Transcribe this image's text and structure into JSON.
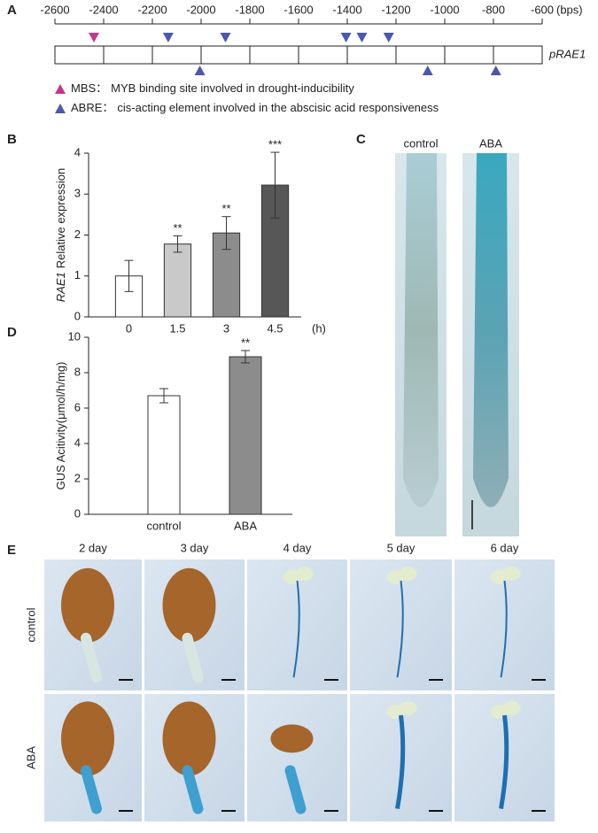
{
  "panel_labels": [
    "A",
    "B",
    "C",
    "D",
    "E"
  ],
  "promoter": {
    "name": "pRAE1",
    "unit": "(bps)",
    "xlim": [
      -2600,
      -600
    ],
    "xticks": [
      -2600,
      -2400,
      -2200,
      -2000,
      -1800,
      -1600,
      -1400,
      -1200,
      -1000,
      -800,
      -600
    ],
    "mbs_sites": [
      -2440
    ],
    "abre_sites_top": [
      -2135,
      -1900,
      -1405,
      -1340,
      -1230
    ],
    "abre_sites_bottom": [
      -2005,
      -1070,
      -790
    ],
    "legend": [
      {
        "label": "MBS：",
        "text": "MYB binding site involved in drought-inducibility",
        "color": "#c2378c"
      },
      {
        "label": "ABRE：",
        "text": "cis-acting element involved in the abscisic acid responsiveness",
        "color": "#4a58b0"
      }
    ]
  },
  "chart_data": [
    {
      "type": "bar",
      "ylabel_italic": "RAE1",
      "ylabel": "Relative expression",
      "xlabel": "(h)",
      "categories": [
        "0",
        "1.5",
        "3",
        "4.5"
      ],
      "values": [
        1.0,
        1.78,
        2.05,
        3.22
      ],
      "errors": [
        0.38,
        0.2,
        0.4,
        0.8
      ],
      "colors": [
        "#ffffff",
        "#c9c9c9",
        "#8c8c8c",
        "#575757"
      ],
      "significance": [
        null,
        "**",
        "**",
        "***"
      ],
      "ylim": [
        0,
        4
      ],
      "yticks": [
        0,
        1,
        2,
        3,
        4
      ]
    },
    {
      "type": "bar",
      "ylabel": "GUS Acitivity(μmol/h/mg)",
      "categories": [
        "control",
        "ABA"
      ],
      "values": [
        6.7,
        8.9
      ],
      "errors": [
        0.4,
        0.35
      ],
      "colors": [
        "#ffffff",
        "#8c8c8c"
      ],
      "significance": [
        null,
        "**"
      ],
      "ylim": [
        0,
        10
      ],
      "yticks": [
        0,
        2,
        4,
        6,
        8,
        10
      ]
    }
  ],
  "panel_c": {
    "columns": [
      "control",
      "ABA"
    ]
  },
  "panel_e": {
    "columns": [
      "2 day",
      "3 day",
      "4 day",
      "5 day",
      "6 day"
    ],
    "rows": [
      "control",
      "ABA"
    ]
  }
}
